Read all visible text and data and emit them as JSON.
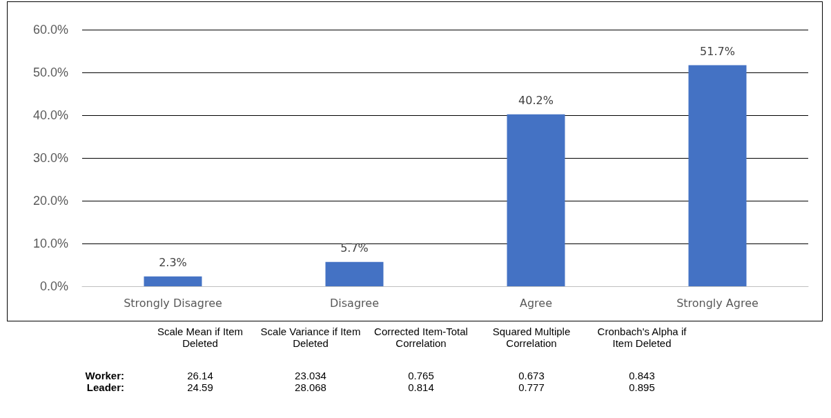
{
  "chart_data": {
    "type": "bar",
    "categories": [
      "Strongly Disagree",
      "Disagree",
      "Agree",
      "Strongly Agree"
    ],
    "values": [
      2.3,
      5.7,
      40.2,
      51.7
    ],
    "value_labels": [
      "2.3%",
      "5.7%",
      "40.2%",
      "51.7%"
    ],
    "color": "#4472c4",
    "ylim": [
      0,
      60
    ],
    "yticks": [
      {
        "value": 0,
        "label": "0.0%"
      },
      {
        "value": 10,
        "label": "10.0%"
      },
      {
        "value": 20,
        "label": "20.0%"
      },
      {
        "value": 30,
        "label": "30.0%"
      },
      {
        "value": 40,
        "label": "40.0%"
      },
      {
        "value": 50,
        "label": "50.0%"
      },
      {
        "value": 60,
        "label": "60.0%"
      }
    ],
    "grid": "y",
    "annotations": [
      "Scale Mean if Item Deleted",
      "Scale Variance if Item Deleted",
      "Corrected Item-Total Correlation",
      "Squared Multiple Correlation",
      "Cronbach's Alpha if Item Deleted",
      "Worker:",
      "26.14",
      "23.034",
      "0.765",
      "0.673",
      "0.843",
      "Leader:",
      "24.59",
      "28.068",
      "0.814",
      "0.777",
      "0.895"
    ]
  }
}
